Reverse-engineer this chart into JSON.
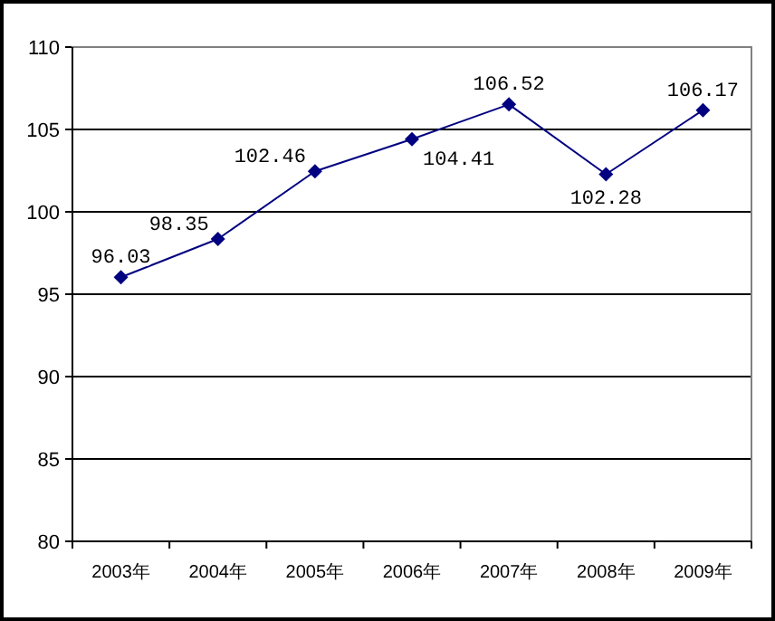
{
  "chart_data": {
    "type": "line",
    "categories": [
      "2003年",
      "2004年",
      "2005年",
      "2006年",
      "2007年",
      "2008年",
      "2009年"
    ],
    "values": [
      96.03,
      98.35,
      102.46,
      104.41,
      106.52,
      102.28,
      106.17
    ],
    "color": "#000080",
    "ylim": [
      80,
      110
    ],
    "yticks": [
      80,
      85,
      90,
      95,
      100,
      105,
      110
    ],
    "grid": "y",
    "marker": "diamond",
    "data_labels": true
  }
}
